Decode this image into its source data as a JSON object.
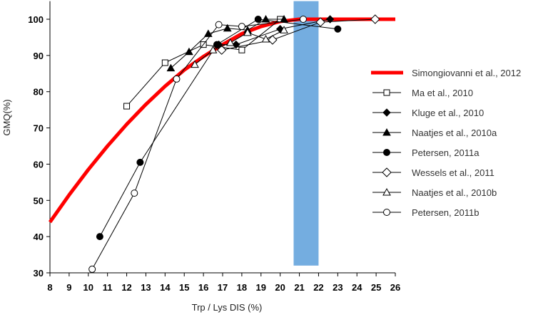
{
  "chart_data": {
    "type": "line",
    "xlabel": "Trp / Lys DIS (%)",
    "ylabel": "GMQ(%)",
    "xlim": [
      8,
      26
    ],
    "ylim": [
      30,
      105
    ],
    "x_ticks": [
      8,
      9,
      10,
      11,
      12,
      13,
      14,
      15,
      16,
      17,
      18,
      19,
      20,
      21,
      22,
      23,
      24,
      25,
      26
    ],
    "y_ticks": [
      30,
      40,
      50,
      60,
      70,
      80,
      90,
      100
    ],
    "grid": false,
    "legend_position": "right",
    "highlight_band": {
      "x": [
        20.7,
        22.0
      ],
      "y": [
        32,
        105
      ],
      "color": "#74ADE0"
    },
    "series": [
      {
        "name": "Simongiovanni et al., 2012",
        "style": "thick-line",
        "marker": "none",
        "color": "#FF0000",
        "x": [
          8,
          9,
          10,
          11,
          12,
          13,
          14,
          15,
          16,
          17,
          18,
          19,
          20,
          21,
          22,
          23,
          24,
          25,
          26
        ],
        "y": [
          44,
          51.5,
          58.5,
          65,
          71,
          76.5,
          81.5,
          86,
          89.7,
          93,
          96,
          98,
          99.4,
          100,
          100,
          100,
          100,
          100,
          100
        ]
      },
      {
        "name": "Ma et al., 2010",
        "marker": "open-square",
        "color": "#000000",
        "x": [
          12,
          14,
          16,
          18,
          20
        ],
        "y": [
          76,
          88,
          93,
          91.5,
          100
        ]
      },
      {
        "name": "Kluge et al., 2010",
        "marker": "filled-diamond",
        "color": "#000000",
        "x": [
          16.8,
          17.7,
          20,
          22.6
        ],
        "y": [
          93,
          93,
          97.3,
          100
        ]
      },
      {
        "name": "Naatjes et al., 2010a",
        "marker": "filled-triangle",
        "color": "#000000",
        "x": [
          14.3,
          15.25,
          16.25,
          17.25,
          18.3,
          19.25,
          20.2
        ],
        "y": [
          86.5,
          91,
          96,
          97.5,
          97,
          100,
          100
        ]
      },
      {
        "name": "Petersen, 2011a",
        "marker": "filled-circle",
        "color": "#000000",
        "x": [
          10.6,
          12.7,
          16.7,
          18.85,
          23
        ],
        "y": [
          40,
          60.5,
          93,
          100,
          97.3
        ]
      },
      {
        "name": "Wessels et al., 2011",
        "marker": "open-diamond",
        "color": "#000000",
        "x": [
          16.95,
          19.6,
          22.1,
          24.95
        ],
        "y": [
          91.5,
          94.3,
          99.2,
          100
        ]
      },
      {
        "name": "Naatjes et al., 2010b",
        "marker": "open-triangle",
        "color": "#000000",
        "x": [
          15.55,
          16.5,
          17.4,
          18.3,
          19.25,
          20.2
        ],
        "y": [
          87.5,
          91.5,
          93.5,
          96.3,
          94.5,
          97
        ]
      },
      {
        "name": "Petersen, 2011b",
        "marker": "open-circle",
        "color": "#000000",
        "x": [
          10.2,
          12.4,
          14.6,
          16.8,
          18,
          21.2
        ],
        "y": [
          31,
          52,
          83.5,
          98.5,
          98,
          100
        ]
      }
    ]
  }
}
